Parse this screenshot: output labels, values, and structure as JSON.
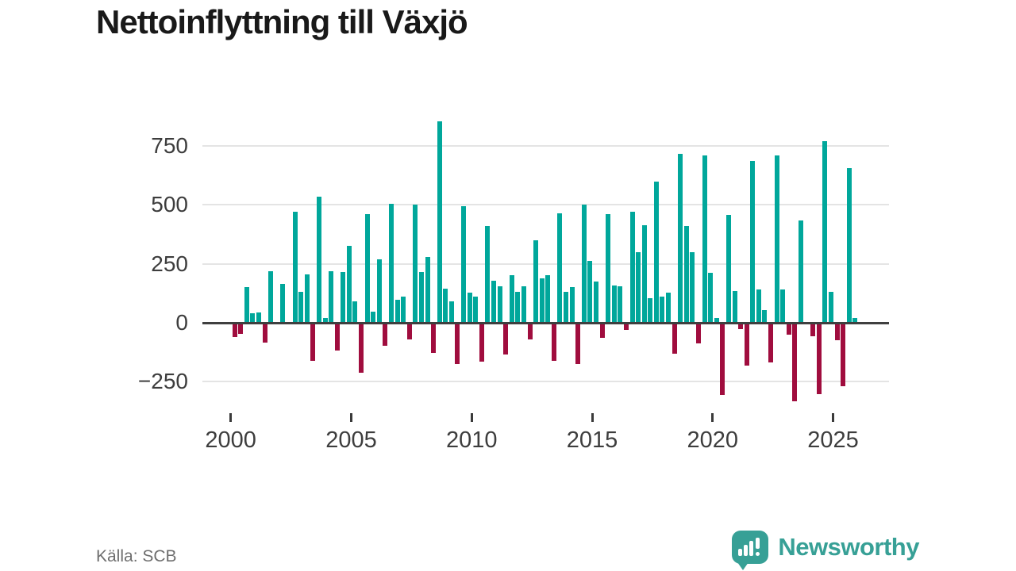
{
  "title": "Nettoinflyttning till Växjö",
  "source": "Källa: SCB",
  "branding": {
    "name": "Newsworthy",
    "color": "#37a096"
  },
  "chart_data": {
    "type": "bar",
    "title": "Nettoinflyttning till Växjö",
    "frequency": "quarterly",
    "start": "2000Q1",
    "end": "2025Q4",
    "periods_per_year": 4,
    "start_year": 2000,
    "x_tick_years": [
      2000,
      2005,
      2010,
      2015,
      2020,
      2025
    ],
    "y_ticks": [
      750,
      500,
      250,
      0,
      -250
    ],
    "ylim": [
      -360,
      870
    ],
    "grid": "horizontal",
    "legend": "none",
    "positive_color": "#00a79b",
    "negative_color": "#a00d3e",
    "values": [
      -56,
      -45,
      150,
      40,
      45,
      -81,
      218,
      0,
      166,
      0,
      472,
      130,
      204,
      -157,
      536,
      20,
      218,
      -113,
      215,
      326,
      92,
      -208,
      460,
      47,
      268,
      -95,
      505,
      99,
      110,
      -67,
      500,
      215,
      280,
      -123,
      853,
      146,
      92,
      -172,
      494,
      129,
      112,
      -163,
      410,
      177,
      155,
      -132,
      202,
      131,
      155,
      -67,
      350,
      190,
      203,
      -158,
      463,
      132,
      151,
      -170,
      503,
      261,
      174,
      -62,
      462,
      159,
      154,
      -26,
      471,
      300,
      413,
      105,
      598,
      110,
      129,
      -129,
      717,
      410,
      301,
      -84,
      709,
      213,
      19,
      -303,
      458,
      135,
      -22,
      -179,
      687,
      140,
      54,
      -166,
      709,
      143,
      -48,
      -330,
      433,
      0,
      -55,
      -301,
      770,
      131,
      -71,
      -267,
      657,
      19
    ]
  }
}
